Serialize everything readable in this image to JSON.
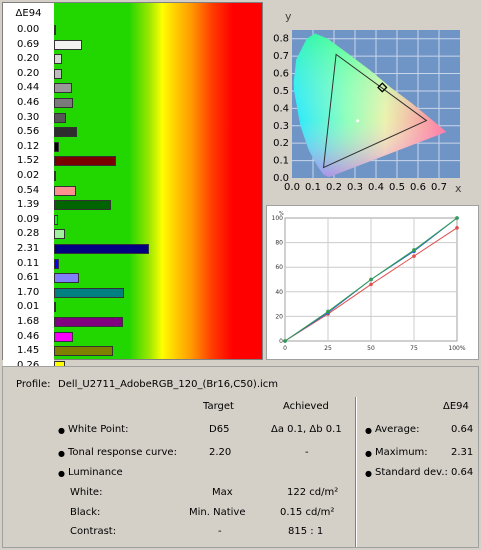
{
  "delta_e_panel": {
    "header": "ΔE94",
    "rows": [
      {
        "value": "0.00",
        "de": 0.0,
        "color": "#ffffff"
      },
      {
        "value": "0.69",
        "de": 0.69,
        "color": "#f2f2f2"
      },
      {
        "value": "0.20",
        "de": 0.2,
        "color": "#d8d8d8"
      },
      {
        "value": "0.20",
        "de": 0.2,
        "color": "#bdbdbd"
      },
      {
        "value": "0.44",
        "de": 0.44,
        "color": "#999999"
      },
      {
        "value": "0.46",
        "de": 0.46,
        "color": "#7a7a7a"
      },
      {
        "value": "0.30",
        "de": 0.3,
        "color": "#575757"
      },
      {
        "value": "0.56",
        "de": 0.56,
        "color": "#2e2e2e"
      },
      {
        "value": "0.12",
        "de": 0.12,
        "color": "#000000"
      },
      {
        "value": "1.52",
        "de": 1.52,
        "color": "#7a0000"
      },
      {
        "value": "0.02",
        "de": 0.02,
        "color": "#ff0000"
      },
      {
        "value": "0.54",
        "de": 0.54,
        "color": "#ff9090"
      },
      {
        "value": "1.39",
        "de": 1.39,
        "color": "#006400"
      },
      {
        "value": "0.09",
        "de": 0.09,
        "color": "#00ff00"
      },
      {
        "value": "0.28",
        "de": 0.28,
        "color": "#a0f0a0"
      },
      {
        "value": "2.31",
        "de": 2.31,
        "color": "#000080"
      },
      {
        "value": "0.11",
        "de": 0.11,
        "color": "#0000ff"
      },
      {
        "value": "0.61",
        "de": 0.61,
        "color": "#8080ff"
      },
      {
        "value": "1.70",
        "de": 1.7,
        "color": "#008080"
      },
      {
        "value": "0.01",
        "de": 0.01,
        "color": "#00ffff"
      },
      {
        "value": "1.68",
        "de": 1.68,
        "color": "#800080"
      },
      {
        "value": "0.46",
        "de": 0.46,
        "color": "#ff00ff"
      },
      {
        "value": "1.45",
        "de": 1.45,
        "color": "#808000"
      },
      {
        "value": "0.26",
        "de": 0.26,
        "color": "#ffff00"
      }
    ]
  },
  "chromaticity_chart": {
    "x_axis_label": "x",
    "y_axis_label": "y",
    "x_ticks": [
      "0.0",
      "0.1",
      "0.2",
      "0.3",
      "0.4",
      "0.5",
      "0.6",
      "0.7"
    ],
    "y_ticks": [
      "0.0",
      "0.1",
      "0.2",
      "0.3",
      "0.4",
      "0.5",
      "0.6",
      "0.7",
      "0.8"
    ],
    "background_color": "#6f94c6",
    "gamut_triangle": [
      [
        0.21,
        0.71
      ],
      [
        0.15,
        0.06
      ],
      [
        0.64,
        0.33
      ]
    ],
    "white_point": [
      0.3127,
      0.329
    ],
    "marker": [
      0.43,
      0.52
    ]
  },
  "tonal_chart": {
    "y_label": "%",
    "x_ticks": [
      "0",
      "25",
      "50",
      "75",
      "100%"
    ],
    "y_ticks": [
      "100",
      "80",
      "60",
      "40",
      "20",
      "0"
    ],
    "series": [
      {
        "color": "#e05050",
        "x": [
          0,
          25,
          50,
          75,
          100
        ],
        "y": [
          0,
          22,
          46,
          69,
          92
        ]
      },
      {
        "color": "#3060d0",
        "x": [
          0,
          25,
          50,
          75,
          100
        ],
        "y": [
          0,
          23,
          50,
          73,
          100
        ]
      },
      {
        "color": "#30a050",
        "x": [
          0,
          25,
          50,
          75,
          100
        ],
        "y": [
          0,
          24,
          50,
          74,
          100
        ]
      }
    ]
  },
  "info": {
    "profile_label": "Profile:",
    "profile_value": "Dell_U2711_AdobeRGB_120_(Br16,C50).icm",
    "col_target": "Target",
    "col_achieved": "Achieved",
    "col_de": "ΔE94",
    "white_point_label": "White Point:",
    "white_point_target": "D65",
    "white_point_achieved": "Δa 0.1, Δb 0.1",
    "tonal_label": "Tonal response curve:",
    "tonal_target": "2.20",
    "tonal_achieved": "-",
    "luminance_label": "Luminance",
    "white_label": "White:",
    "white_target": "Max",
    "white_achieved": "122 cd/m²",
    "black_label": "Black:",
    "black_target": "Min. Native",
    "black_achieved": "0.15 cd/m²",
    "contrast_label": "Contrast:",
    "contrast_target": "-",
    "contrast_achieved": "815 : 1",
    "average_label": "Average:",
    "average_value": "0.64",
    "maximum_label": "Maximum:",
    "maximum_value": "2.31",
    "stddev_label": "Standard dev.:",
    "stddev_value": "0.64",
    "bullet": "●"
  }
}
